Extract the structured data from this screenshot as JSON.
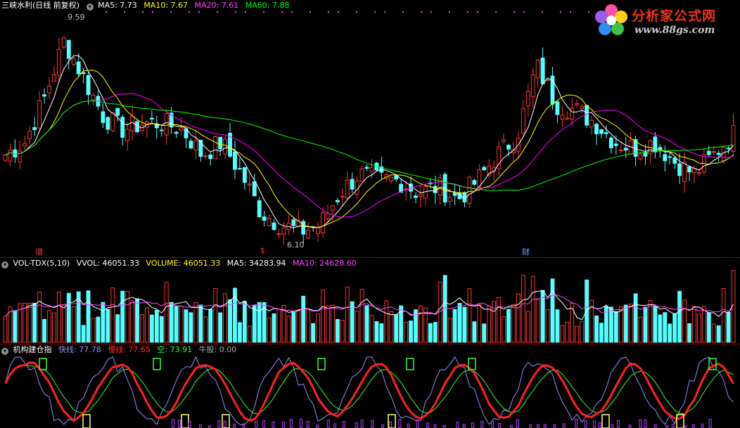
{
  "price_panel": {
    "stock_title": "三峡水利(日线 前复权)",
    "info_icon": "circle-down-icon",
    "ma5": "MA5: 7.73",
    "ma10": "MA10: 7.67",
    "ma20": "MA20: 7.61",
    "ma60": "MA60: 7.88",
    "high_label": "9.59",
    "low_label": "6.10",
    "event_markers": [
      "增",
      "$",
      "财"
    ],
    "colors": {
      "ma5": "#ffffff",
      "ma10": "#ffff00",
      "ma20": "#ff00ff",
      "ma60": "#00ff00",
      "up": "#ff3232",
      "down": "#54ffff"
    }
  },
  "volume_panel": {
    "indicator": "VOL-TDX(5,10)",
    "vvol": "VVOL: 46051.33",
    "volume": "VOLUME: 46051.33",
    "ma5": "MA5: 34283.94",
    "ma10": "MA10: 24628.60"
  },
  "indicator_panel": {
    "name": "机构建仓指",
    "fast": "快线: 77.78",
    "slow": "慢线: 77.65",
    "short": "空: 73.91",
    "bull": "牛股: 0.00"
  },
  "logo": {
    "title": "分析家公式网",
    "url": "www.88gs.com"
  },
  "chart_data": {
    "type": "candlestick",
    "price_range": [
      6.1,
      9.59
    ],
    "close_trend": [
      7.4,
      7.6,
      8.3,
      9.2,
      8.6,
      8.0,
      7.8,
      7.9,
      7.9,
      7.8,
      7.4,
      7.6,
      7.1,
      6.5,
      6.3,
      6.2,
      6.3,
      6.8,
      7.1,
      7.0,
      7.0,
      6.8,
      6.9,
      6.7,
      7.0,
      7.4,
      7.7,
      8.8,
      8.2,
      8.1,
      7.9,
      7.6,
      7.5,
      7.6,
      7.3,
      7.1,
      7.4,
      7.73
    ]
  }
}
